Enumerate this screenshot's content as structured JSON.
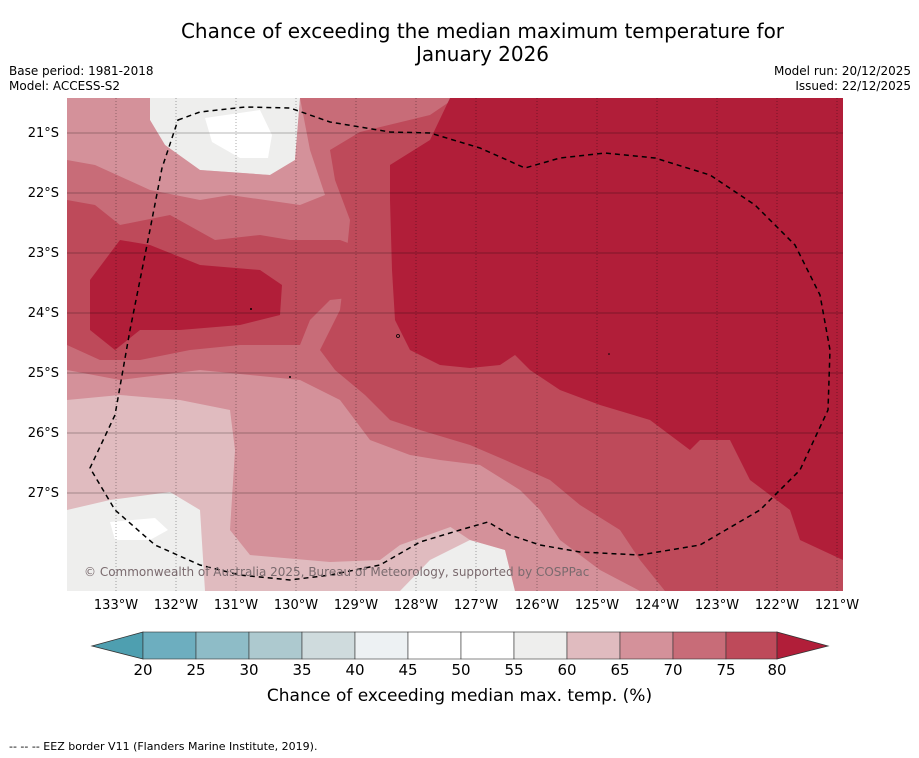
{
  "title": {
    "line1": "Chance of exceeding the median maximum temperature for",
    "line2": "January 2026"
  },
  "meta": {
    "base_period": "Base period: 1981-2018",
    "model": "Model: ACCESS-S2",
    "model_run": "Model run: 20/12/2025",
    "issued": "Issued: 22/12/2025"
  },
  "map": {
    "lat_labels": [
      "21°S",
      "22°S",
      "23°S",
      "24°S",
      "25°S",
      "26°S",
      "27°S"
    ],
    "lon_labels": [
      "133°W",
      "132°W",
      "131°W",
      "130°W",
      "129°W",
      "128°W",
      "127°W",
      "126°W",
      "125°W",
      "124°W",
      "123°W",
      "122°W",
      "121°W"
    ],
    "copyright": "© Commonwealth of Australia 2025, Bureau of Meteorology, supported by COSPPac",
    "colors": {
      "c60_65": "#e0bbbf",
      "c65_70": "#d4919a",
      "c70_75": "#c86c78",
      "c75_80": "#be4a5a",
      "c80": "#b11e39",
      "c55_60": "#eeeeed"
    }
  },
  "colorbar": {
    "ticks": [
      "20",
      "25",
      "30",
      "35",
      "40",
      "45",
      "50",
      "55",
      "60",
      "65",
      "70",
      "75",
      "80"
    ],
    "colors": [
      "#4e9fb0",
      "#6daebf",
      "#8ebcc7",
      "#adc9cf",
      "#cfdbdd",
      "#edf1f3",
      "#ffffff",
      "#ffffff",
      "#eeeeed",
      "#e0bbbf",
      "#d4919a",
      "#c86c78",
      "#be4a5a",
      "#b11e39"
    ],
    "label": "Chance of exceeding median max. temp. (%)"
  },
  "footer": "--  --  -- EEZ border V11 (Flanders Marine Institute, 2019)."
}
